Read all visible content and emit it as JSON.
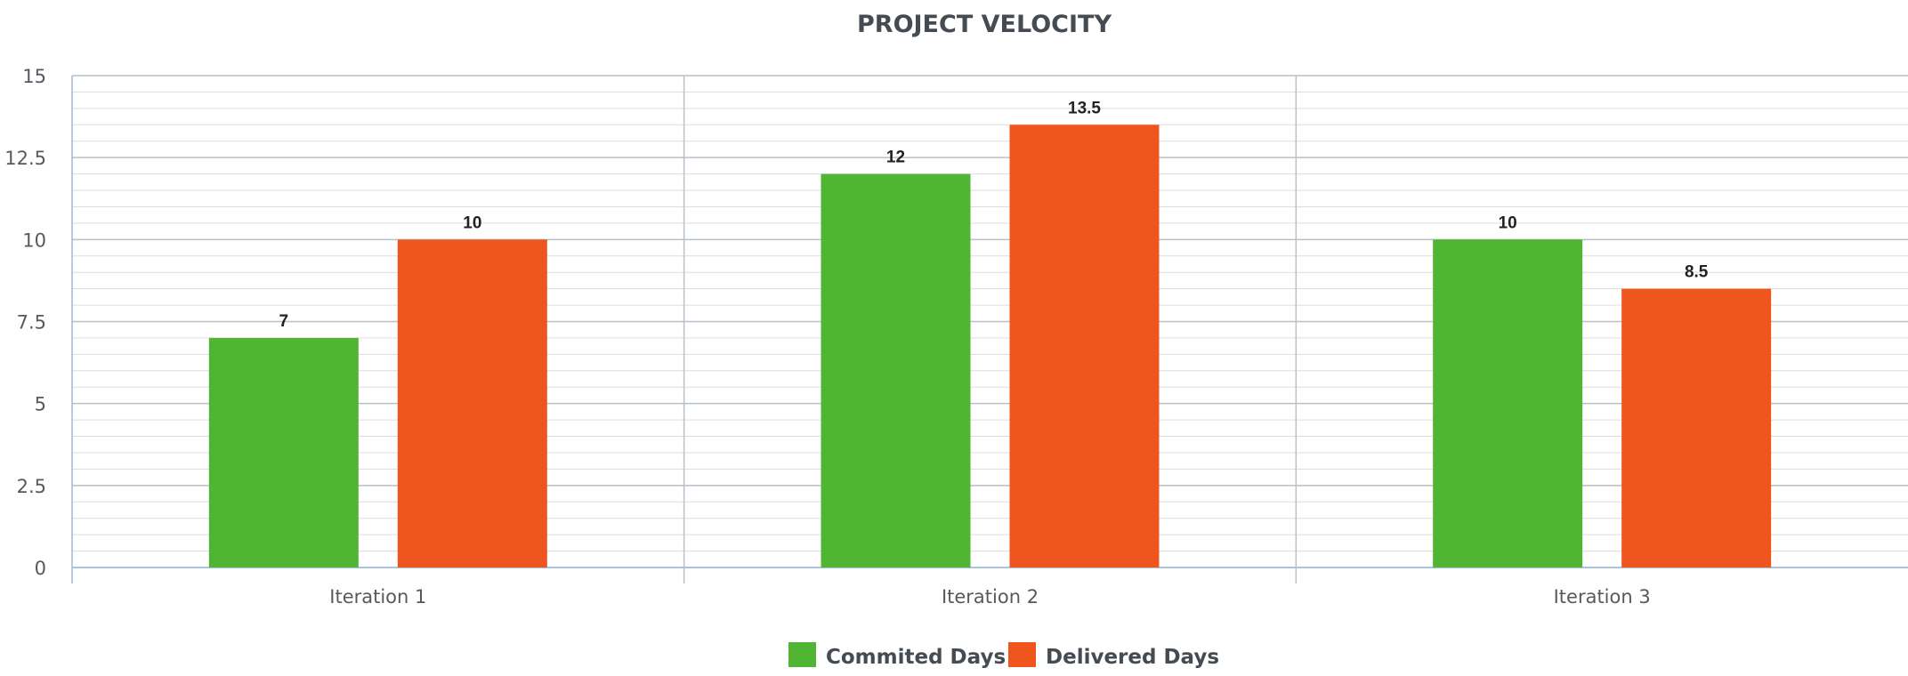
{
  "chart_data": {
    "type": "bar",
    "title": "PROJECT VELOCITY",
    "categories": [
      "Iteration 1",
      "Iteration 2",
      "Iteration 3"
    ],
    "series": [
      {
        "name": "Commited Days",
        "color": "#4fb533",
        "values": [
          7,
          12,
          10
        ]
      },
      {
        "name": "Delivered Days",
        "color": "#ee561e",
        "values": [
          10,
          13.5,
          8.5
        ]
      }
    ],
    "data_labels": [
      [
        "7",
        "12",
        "10"
      ],
      [
        "10",
        "13.5",
        "8.5"
      ]
    ],
    "ylim": [
      0,
      15
    ],
    "yticks": [
      "0",
      "2.5",
      "5",
      "7.5",
      "10",
      "12.5",
      "15"
    ],
    "grid": true,
    "legend_position": "bottom-center"
  }
}
